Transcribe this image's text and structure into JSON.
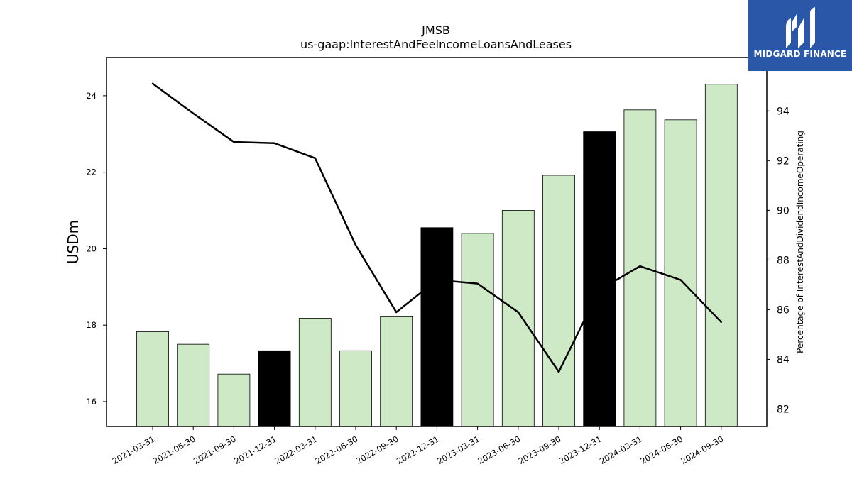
{
  "chart_data": {
    "type": "bar",
    "title": "JMSB",
    "subtitle": "us-gaap:InterestAndFeeIncomeLoansAndLeases",
    "ylabel": "USDm",
    "y2label": "Percentage of InterestAndDividendIncomeOperating",
    "categories": [
      "2021-03-31",
      "2021-06-30",
      "2021-09-30",
      "2021-12-31",
      "2022-03-31",
      "2022-06-30",
      "2022-09-30",
      "2022-12-31",
      "2023-03-31",
      "2023-06-30",
      "2023-09-30",
      "2023-12-31",
      "2024-03-31",
      "2024-06-30",
      "2024-09-30"
    ],
    "bar_values": [
      17.83,
      17.5,
      16.72,
      17.33,
      18.18,
      17.33,
      18.22,
      20.55,
      20.4,
      21.0,
      21.92,
      23.06,
      23.63,
      23.37,
      24.3
    ],
    "bar_colors": [
      "#cde9c6",
      "#cde9c6",
      "#cde9c6",
      "#000000",
      "#cde9c6",
      "#cde9c6",
      "#cde9c6",
      "#000000",
      "#cde9c6",
      "#cde9c6",
      "#cde9c6",
      "#000000",
      "#cde9c6",
      "#cde9c6",
      "#cde9c6"
    ],
    "line_values": [
      95.1,
      93.9,
      92.75,
      92.7,
      92.1,
      88.6,
      85.9,
      87.2,
      87.05,
      85.9,
      83.5,
      86.8,
      87.75,
      87.2,
      85.5
    ],
    "ylim": [
      15.35,
      25.0
    ],
    "y2lim": [
      81.3,
      96.15
    ],
    "yticks": [
      16,
      18,
      20,
      22,
      24
    ],
    "y2ticks": [
      82,
      84,
      86,
      88,
      90,
      92,
      94
    ],
    "grid": false
  },
  "logo": {
    "text": "MIDGARD FINANCE",
    "color": "#2b57a8"
  }
}
